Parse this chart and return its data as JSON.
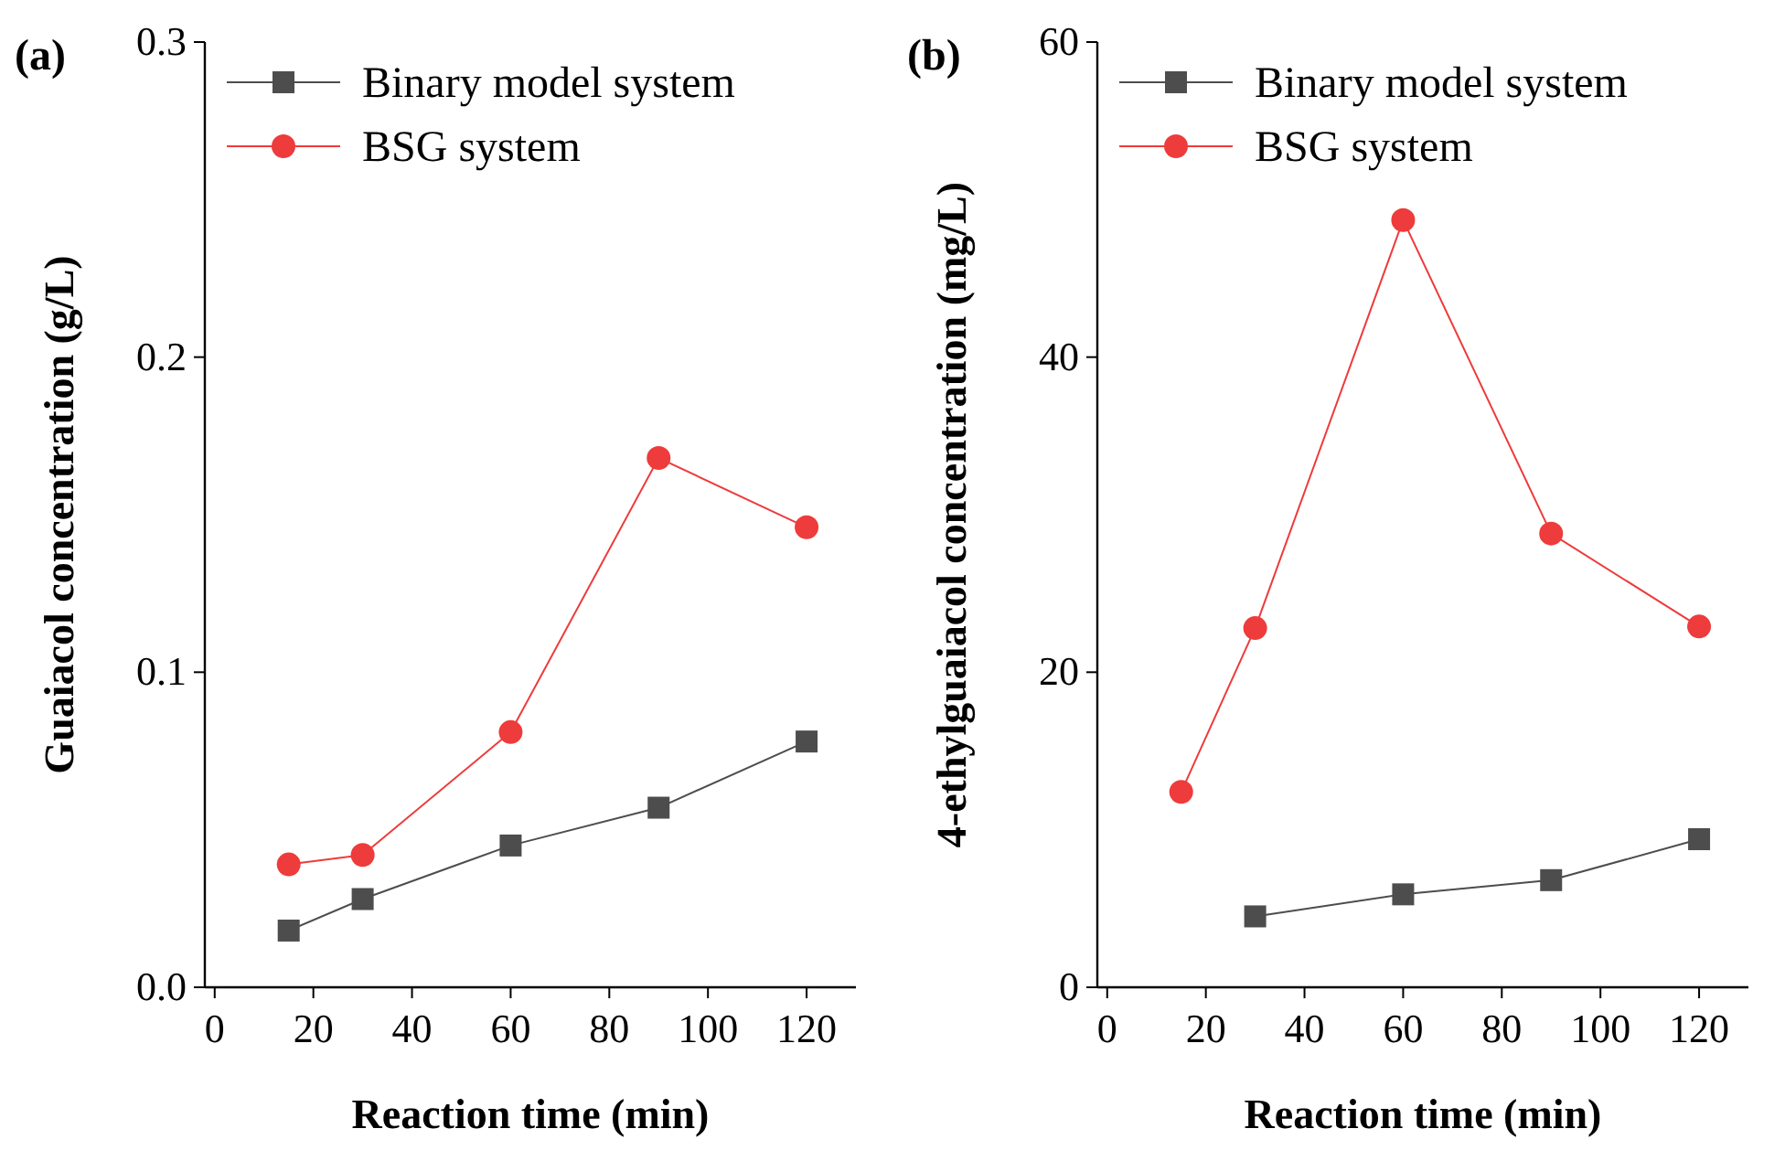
{
  "chart_data": [
    {
      "type": "line",
      "title": "(a)",
      "xlabel": "Reaction time (min)",
      "ylabel": "Guaiacol concentration (g/L)",
      "x": [
        15,
        30,
        60,
        90,
        120
      ],
      "xlim": [
        -2,
        130
      ],
      "xticks": [
        0,
        20,
        40,
        60,
        80,
        100,
        120
      ],
      "ylim": [
        0,
        0.3
      ],
      "yticks": [
        {
          "value": 0,
          "label": "0.0"
        },
        0.1,
        0.2,
        0.3
      ],
      "legend": "top left",
      "grid": false,
      "series": [
        {
          "name": "Binary model system",
          "color": "#4d4d4d",
          "marker": "square",
          "values": [
            0.018,
            0.028,
            0.045,
            0.057,
            0.078
          ]
        },
        {
          "name": "BSG system",
          "color": "#ee3b3b",
          "marker": "circle",
          "values": [
            0.039,
            0.042,
            0.081,
            0.168,
            0.146
          ]
        }
      ]
    },
    {
      "type": "line",
      "title": "(b)",
      "xlabel": "Reaction time (min)",
      "ylabel": "4-ethylguaiacol concentration (mg/L)",
      "x": [
        15,
        30,
        60,
        90,
        120
      ],
      "xlim": [
        -2,
        130
      ],
      "xticks": [
        0,
        20,
        40,
        60,
        80,
        100,
        120
      ],
      "ylim": [
        0,
        60
      ],
      "yticks": [
        0,
        20,
        40,
        60
      ],
      "legend": "top left",
      "grid": false,
      "series": [
        {
          "name": "Binary model system",
          "color": "#4d4d4d",
          "marker": "square",
          "values": [
            null,
            4.5,
            5.9,
            6.8,
            9.4
          ]
        },
        {
          "name": "BSG system",
          "color": "#ee3b3b",
          "marker": "circle",
          "values": [
            12.4,
            22.8,
            48.7,
            28.8,
            22.9
          ]
        }
      ]
    }
  ]
}
